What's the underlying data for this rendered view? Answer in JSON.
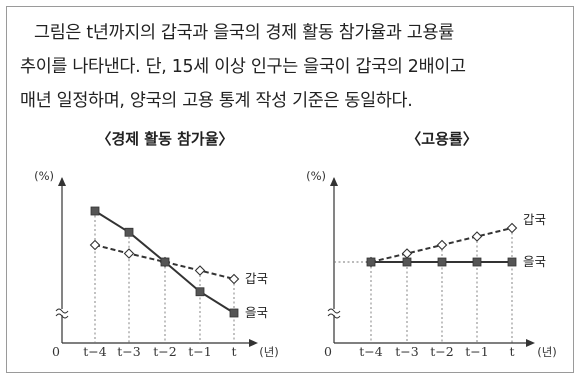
{
  "intro": {
    "line1": "그림은 t년까지의 갑국과 을국의 경제 활동 참가율과 고용률",
    "line2": "추이를 나타낸다. 단, 15세 이상 인구는 을국이 갑국의 2배이고",
    "line3": "매년 일정하며, 양국의 고용 통계 작성 기준은 동일하다."
  },
  "chart_data": [
    {
      "type": "line",
      "title": "〈경제 활동 참가율〉",
      "categories": [
        "t−4",
        "t−3",
        "t−2",
        "t−1",
        "t"
      ],
      "ylabel": "(%)",
      "xlabel": "(년)",
      "origin_label": "0",
      "axis_break": true,
      "series": [
        {
          "name": "갑국",
          "values": [
            5,
            4.5,
            4,
            3.5,
            3
          ],
          "style": "dashed",
          "marker": "open-diamond",
          "color": "#333333"
        },
        {
          "name": "을국",
          "values": [
            7,
            5.75,
            4,
            2.25,
            1
          ],
          "style": "solid",
          "marker": "filled-square",
          "color": "#333333"
        }
      ],
      "ylim": [
        0,
        8
      ]
    },
    {
      "type": "line",
      "title": "〈고용률〉",
      "categories": [
        "t−4",
        "t−3",
        "t−2",
        "t−1",
        "t"
      ],
      "ylabel": "(%)",
      "xlabel": "(년)",
      "origin_label": "0",
      "axis_break": true,
      "series": [
        {
          "name": "갑국",
          "values": [
            4,
            4.5,
            5,
            5.5,
            6
          ],
          "style": "dashed",
          "marker": "open-diamond",
          "color": "#333333"
        },
        {
          "name": "을국",
          "values": [
            4,
            4,
            4,
            4,
            4
          ],
          "style": "solid",
          "marker": "filled-square",
          "color": "#333333"
        }
      ],
      "ylim": [
        0,
        8
      ]
    }
  ]
}
